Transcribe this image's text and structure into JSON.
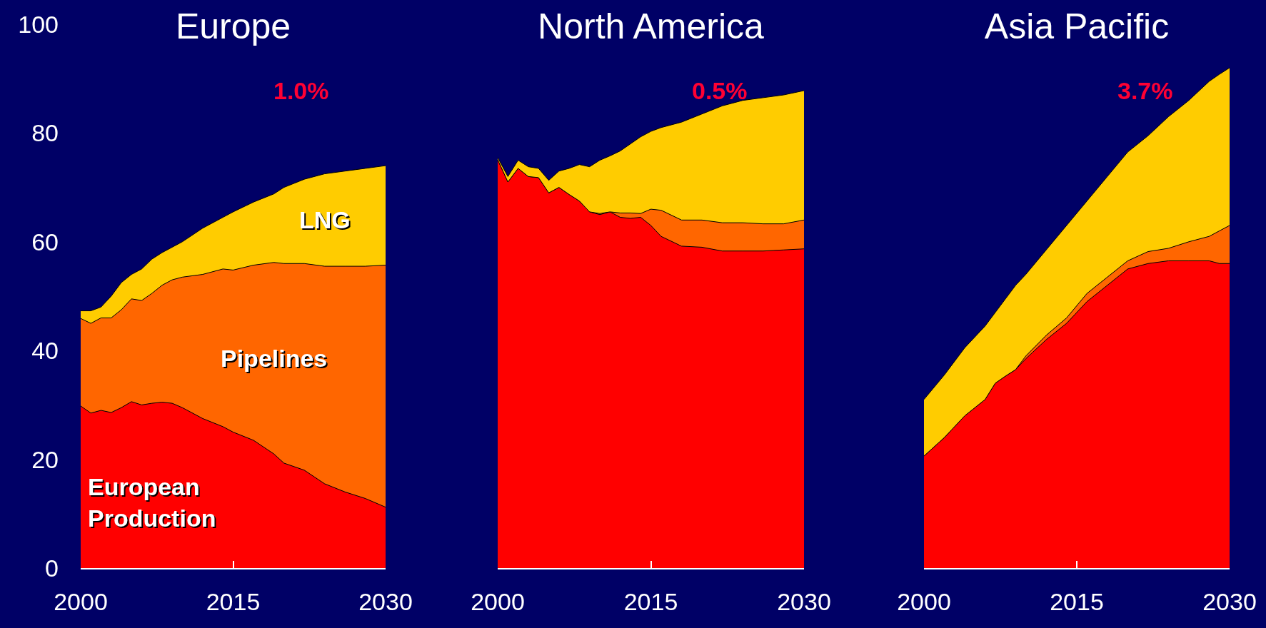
{
  "chart_data": [
    {
      "type": "area",
      "title": "Europe",
      "stacked": true,
      "xlim": [
        2000,
        2030
      ],
      "xticks": [
        2000,
        2015,
        2030
      ],
      "ylim": [
        0,
        100
      ],
      "yticks": [
        0,
        20,
        40,
        60,
        80,
        100
      ],
      "annotations": [
        "1.0%"
      ],
      "x": [
        2000,
        2001,
        2002,
        2003,
        2004,
        2005,
        2006,
        2007,
        2008,
        2009,
        2010,
        2012,
        2014,
        2015,
        2017,
        2019,
        2020,
        2022,
        2024,
        2026,
        2028,
        2030
      ],
      "series": [
        {
          "name": "European Production",
          "color": "#ff0000",
          "values": [
            29.8,
            28.5,
            29,
            28.6,
            29.5,
            30.6,
            30,
            30.3,
            30.5,
            30.3,
            29.5,
            27.5,
            26,
            25,
            23.5,
            21,
            19.3,
            18,
            15.5,
            14,
            12.8,
            11.2
          ]
        },
        {
          "name": "Pipelines",
          "color": "#ff6600",
          "values": [
            16.1,
            16.5,
            17,
            17.4,
            18,
            18.9,
            19.2,
            20.2,
            21.5,
            22.7,
            24,
            26.5,
            29,
            29.8,
            32.2,
            35.2,
            36.7,
            38,
            40,
            41.5,
            42.7,
            44.5
          ]
        },
        {
          "name": "LNG",
          "color": "#ffcc00",
          "values": [
            1.4,
            2.3,
            2,
            4,
            5,
            4.5,
            5.8,
            6.3,
            6,
            6,
            6.5,
            8.5,
            9.5,
            10.7,
            11.6,
            12.6,
            14,
            15.5,
            17,
            17.5,
            18,
            18.3
          ]
        }
      ]
    },
    {
      "type": "area",
      "title": "North America",
      "stacked": true,
      "xlim": [
        2000,
        2030
      ],
      "xticks": [
        2000,
        2015,
        2030
      ],
      "ylim": [
        0,
        100
      ],
      "yticks": [
        0,
        20,
        40,
        60,
        80,
        100
      ],
      "tick_labels": "x",
      "annotations": [
        "0.5%"
      ],
      "x": [
        2000,
        2001,
        2002,
        2003,
        2004,
        2005,
        2006,
        2007,
        2008,
        2009,
        2010,
        2011,
        2012,
        2013,
        2014,
        2015,
        2016,
        2018,
        2020,
        2022,
        2024,
        2026,
        2028,
        2030
      ],
      "series": [
        {
          "color": "#ff0000",
          "values": [
            75.1,
            71,
            73.5,
            72,
            71.8,
            69,
            70,
            68.7,
            67.5,
            65.5,
            65,
            65.5,
            64.5,
            64.3,
            64.5,
            63,
            61,
            59.2,
            59,
            58.3,
            58.3,
            58.3,
            58.5,
            58.7
          ]
        },
        {
          "color": "#ff6600",
          "values": [
            0,
            0,
            0,
            0,
            0,
            0,
            0,
            0,
            0,
            0,
            0.2,
            0,
            0.8,
            1,
            0.7,
            3,
            4.8,
            4.8,
            5,
            5.2,
            5.2,
            5,
            4.8,
            5.3
          ]
        },
        {
          "color": "#ffcc00",
          "values": [
            0.4,
            1,
            1.5,
            1.8,
            1.7,
            2.3,
            3,
            4.8,
            6.7,
            8.3,
            9.8,
            10.3,
            11.4,
            12.7,
            14.1,
            14.3,
            15.2,
            18,
            19.5,
            21.5,
            22.5,
            23.2,
            23.7,
            23.8
          ]
        }
      ]
    },
    {
      "type": "area",
      "title": "Asia Pacific",
      "stacked": true,
      "xlim": [
        2000,
        2030
      ],
      "xticks": [
        2000,
        2015,
        2030
      ],
      "ylim": [
        0,
        100
      ],
      "yticks": [
        0,
        20,
        40,
        60,
        80,
        100
      ],
      "tick_labels": "x",
      "annotations": [
        "3.7%"
      ],
      "x": [
        2000,
        2002,
        2004,
        2006,
        2007,
        2008,
        2009,
        2010,
        2012,
        2014,
        2016,
        2018,
        2020,
        2022,
        2024,
        2026,
        2028,
        2029,
        2030
      ],
      "series": [
        {
          "color": "#ff0000",
          "values": [
            20.6,
            24,
            28,
            31,
            34,
            35.3,
            36.5,
            38.5,
            42,
            45,
            49,
            52,
            55,
            56,
            56.5,
            56.5,
            56.5,
            56,
            56
          ]
        },
        {
          "color": "#ff6600",
          "values": [
            0,
            0,
            0,
            0,
            0,
            0,
            0,
            0.5,
            0.8,
            1,
            1.5,
            1.5,
            1.5,
            2.2,
            2.3,
            3.5,
            4.5,
            6,
            7
          ]
        },
        {
          "color": "#ffcc00",
          "values": [
            10.4,
            11.5,
            12.5,
            13.5,
            13,
            14.2,
            15.5,
            15,
            15.7,
            17,
            17,
            18.5,
            20,
            21.3,
            24.2,
            26,
            28.5,
            28.8,
            29
          ]
        }
      ]
    }
  ]
}
